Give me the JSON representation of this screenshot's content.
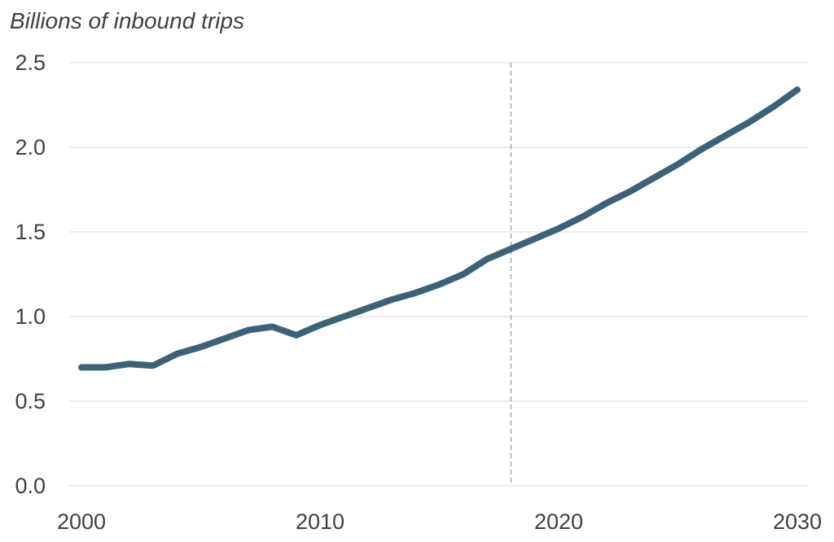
{
  "chart_data": {
    "type": "line",
    "title": "Billions of inbound trips",
    "xlabel": "",
    "ylabel": "",
    "xlim": [
      2000,
      2030
    ],
    "ylim": [
      0,
      2.5
    ],
    "x_ticks": [
      "2000",
      "2010",
      "2020",
      "2030"
    ],
    "y_ticks": [
      "0.0",
      "0.5",
      "1.0",
      "1.5",
      "2.0",
      "2.5"
    ],
    "grid": "horizontal",
    "reference_line_x": 2018,
    "line_color": "#3d6278",
    "series": [
      {
        "x": [
          2000,
          2001,
          2002,
          2003,
          2004,
          2005,
          2006,
          2007,
          2008,
          2009,
          2010,
          2011,
          2012,
          2013,
          2014,
          2015,
          2016,
          2017,
          2018,
          2019,
          2020,
          2021,
          2022,
          2023,
          2024,
          2025,
          2026,
          2027,
          2028,
          2029,
          2030
        ],
        "values": [
          0.7,
          0.7,
          0.72,
          0.71,
          0.78,
          0.82,
          0.87,
          0.92,
          0.94,
          0.89,
          0.95,
          1.0,
          1.05,
          1.1,
          1.14,
          1.19,
          1.25,
          1.34,
          1.4,
          1.46,
          1.52,
          1.59,
          1.67,
          1.74,
          1.82,
          1.9,
          1.99,
          2.07,
          2.15,
          2.24,
          2.34
        ]
      }
    ]
  }
}
